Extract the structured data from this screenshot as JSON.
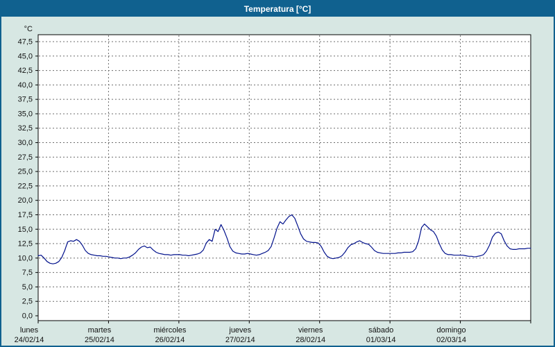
{
  "window": {
    "title": "Temperatura [°C]"
  },
  "colors": {
    "title_bar": "#10618f",
    "window_background": "#d7e7e3",
    "window_border": "#10618f",
    "title_text": "#ffffff"
  },
  "chart_data": {
    "type": "line",
    "title": "Temperatura [°C]",
    "plot_bg": "#ffffff",
    "grid": "dashed",
    "legend": "none",
    "colors": {
      "grid": "#6b6b6b",
      "axis": "#000000",
      "text": "#111111"
    },
    "y_axis": {
      "unit_label": "°C",
      "min": 0,
      "max": 47.5,
      "tick_step": 2.5,
      "decimal_separator": ",",
      "tick_labels": [
        "0,0",
        "2,5",
        "5,0",
        "7,5",
        "10,0",
        "12,5",
        "15,0",
        "17,5",
        "20,0",
        "22,5",
        "25,0",
        "27,5",
        "30,0",
        "32,5",
        "35,0",
        "37,5",
        "40,0",
        "42,5",
        "45,0",
        "47,5"
      ]
    },
    "x_axis": {
      "span_days": 7,
      "days": [
        {
          "name": "lunes",
          "date": "24/02/14"
        },
        {
          "name": "martes",
          "date": "25/02/14"
        },
        {
          "name": "miércoles",
          "date": "26/02/14"
        },
        {
          "name": "jueves",
          "date": "27/02/14"
        },
        {
          "name": "viernes",
          "date": "28/02/14"
        },
        {
          "name": "sábado",
          "date": "01/03/14"
        },
        {
          "name": "domingo",
          "date": "02/03/14"
        }
      ]
    },
    "series": [
      {
        "name": "Temperatura",
        "color": "#00108b",
        "x_unit": "hours",
        "values": [
          10.4,
          10.5,
          10.0,
          9.4,
          9.1,
          9.0,
          9.1,
          9.4,
          10.1,
          11.3,
          12.8,
          13.0,
          12.9,
          13.2,
          12.9,
          12.2,
          11.3,
          10.8,
          10.6,
          10.5,
          10.4,
          10.4,
          10.3,
          10.3,
          10.2,
          10.1,
          10.0,
          10.0,
          9.9,
          10.0,
          10.0,
          10.2,
          10.5,
          10.9,
          11.5,
          11.9,
          12.1,
          11.8,
          11.9,
          11.4,
          11.0,
          10.8,
          10.7,
          10.6,
          10.6,
          10.5,
          10.6,
          10.6,
          10.6,
          10.5,
          10.5,
          10.4,
          10.5,
          10.6,
          10.7,
          10.9,
          11.4,
          12.6,
          13.2,
          12.9,
          15.0,
          14.6,
          15.8,
          14.8,
          13.5,
          12.0,
          11.2,
          10.9,
          10.8,
          10.7,
          10.7,
          10.8,
          10.7,
          10.6,
          10.5,
          10.6,
          10.8,
          11.0,
          11.3,
          12.0,
          13.5,
          15.2,
          16.3,
          15.9,
          16.6,
          17.2,
          17.5,
          16.9,
          15.6,
          14.2,
          13.3,
          12.9,
          12.8,
          12.7,
          12.7,
          12.6,
          12.0,
          11.0,
          10.3,
          10.0,
          9.9,
          10.0,
          10.1,
          10.4,
          11.0,
          11.8,
          12.3,
          12.5,
          12.8,
          13.0,
          12.7,
          12.5,
          12.4,
          11.9,
          11.3,
          11.0,
          10.9,
          10.8,
          10.8,
          10.8,
          10.8,
          10.8,
          10.9,
          10.9,
          11.0,
          11.0,
          11.0,
          11.1,
          11.6,
          13.0,
          15.3,
          15.9,
          15.4,
          14.9,
          14.6,
          13.8,
          12.5,
          11.4,
          10.8,
          10.6,
          10.6,
          10.5,
          10.5,
          10.5,
          10.5,
          10.4,
          10.3,
          10.3,
          10.2,
          10.3,
          10.4,
          10.6,
          11.2,
          12.2,
          13.6,
          14.3,
          14.5,
          14.2,
          13.0,
          12.1,
          11.6,
          11.5,
          11.5,
          11.6,
          11.6,
          11.6,
          11.7,
          11.7
        ]
      }
    ]
  }
}
